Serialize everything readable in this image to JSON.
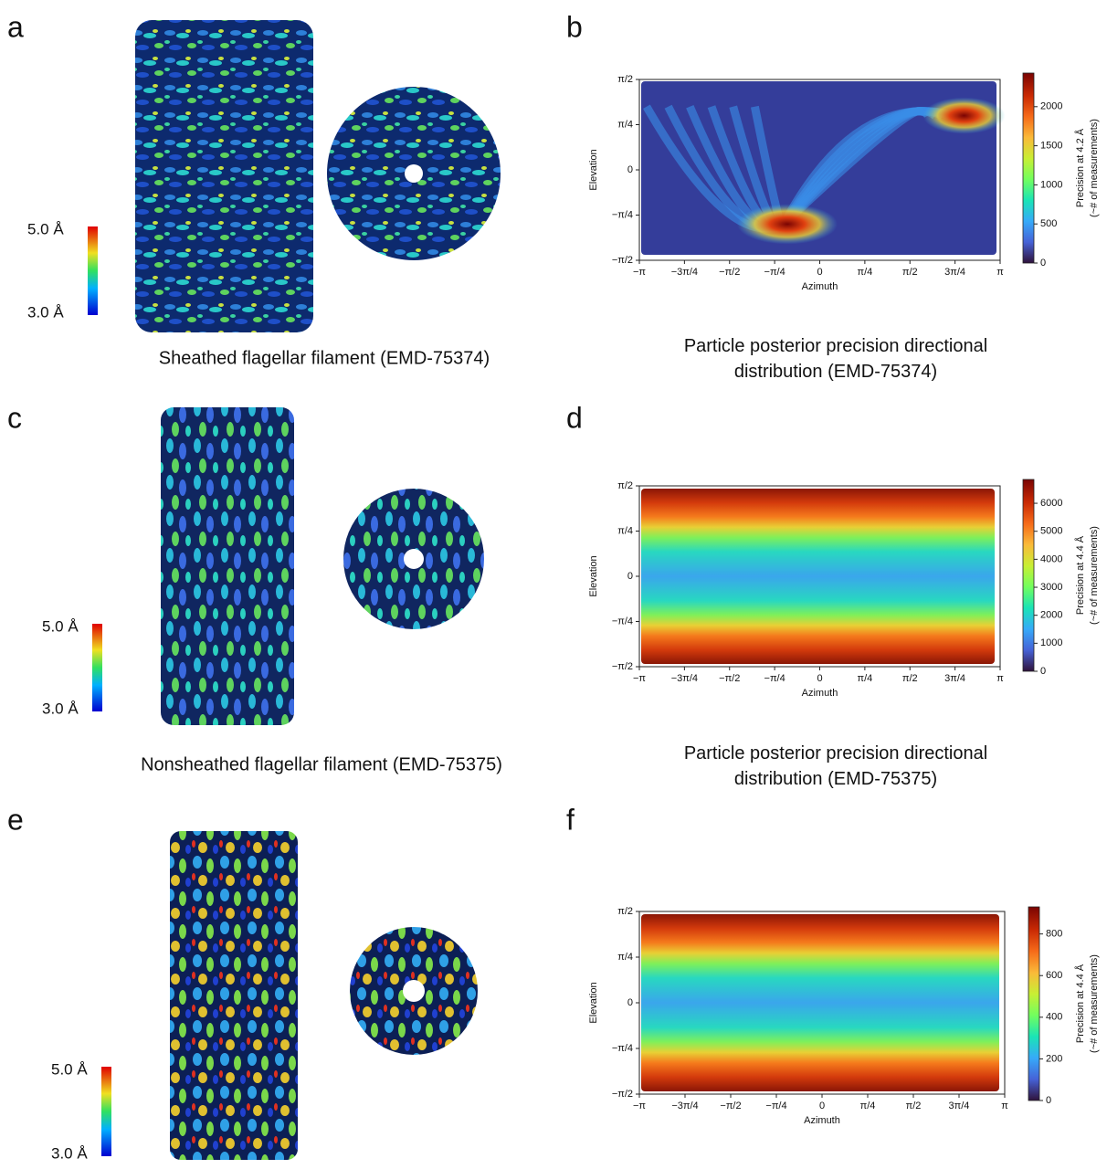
{
  "panels": [
    {
      "letter": "a",
      "caption": "Sheathed flagellar filament (EMD-75374)",
      "scale_max": "5.0 Å",
      "scale_min": "3.0 Å"
    },
    {
      "letter": "b",
      "caption": "Particle posterior precision directional distribution (EMD-75374)",
      "xlabel": "Azimuth",
      "ylabel": "Elevation",
      "cbar_label": [
        "Precision at 4.2 Å",
        "(~# of measurements)"
      ],
      "xlim": [
        -3.14159,
        3.14159
      ],
      "ylim": [
        -1.5708,
        1.5708
      ],
      "xticks": [
        {
          "value": -3.14159,
          "label": "−π"
        },
        {
          "value": -2.35619,
          "label": "−3π/4"
        },
        {
          "value": -1.5708,
          "label": "−π/2"
        },
        {
          "value": -0.7854,
          "label": "−π/4"
        },
        0,
        {
          "value": 0.7854,
          "label": "π/4"
        },
        {
          "value": 1.5708,
          "label": "π/2"
        },
        {
          "value": 2.35619,
          "label": "3π/4"
        },
        {
          "value": 3.14159,
          "label": "π"
        }
      ],
      "yticks": [
        {
          "value": -1.5708,
          "label": "−π/2"
        },
        {
          "value": -0.7854,
          "label": "−π/4"
        },
        0,
        {
          "value": 0.7854,
          "label": "π/4"
        },
        {
          "value": 1.5708,
          "label": "π/2"
        }
      ],
      "cbar_lim": [
        0,
        2430
      ],
      "cbar_ticks": [
        0,
        500,
        1000,
        1500,
        2000
      ]
    },
    {
      "letter": "c",
      "caption": "Nonsheathed flagellar filament (EMD-75375)",
      "scale_max": "5.0 Å",
      "scale_min": "3.0 Å"
    },
    {
      "letter": "d",
      "caption": "Particle posterior precision directional distribution (EMD-75375)",
      "xlabel": "Azimuth",
      "ylabel": "Elevation",
      "cbar_label": [
        "Precision at 4.4 Å",
        "(~# of measurements)"
      ],
      "xlim": [
        -3.14159,
        3.14159
      ],
      "ylim": [
        -1.5708,
        1.5708
      ],
      "xticks": [
        {
          "value": -3.14159,
          "label": "−π"
        },
        {
          "value": -2.35619,
          "label": "−3π/4"
        },
        {
          "value": -1.5708,
          "label": "−π/2"
        },
        {
          "value": -0.7854,
          "label": "−π/4"
        },
        0,
        {
          "value": 0.7854,
          "label": "π/4"
        },
        {
          "value": 1.5708,
          "label": "π/2"
        },
        {
          "value": 2.35619,
          "label": "3π/4"
        },
        {
          "value": 3.14159,
          "label": "π"
        }
      ],
      "yticks": [
        {
          "value": -1.5708,
          "label": "−π/2"
        },
        {
          "value": -0.7854,
          "label": "−π/4"
        },
        0,
        {
          "value": 0.7854,
          "label": "π/4"
        },
        {
          "value": 1.5708,
          "label": "π/2"
        }
      ],
      "cbar_lim": [
        0,
        6850
      ],
      "cbar_ticks": [
        0,
        1000,
        2000,
        3000,
        4000,
        5000,
        6000
      ]
    },
    {
      "letter": "e",
      "scale_max": "5.0 Å",
      "scale_min": "3.0 Å"
    },
    {
      "letter": "f",
      "xlabel": "Azimuth",
      "ylabel": "Elevation",
      "cbar_label": [
        "Precision at 4.4 Å",
        "(~# of measurements)"
      ],
      "xlim": [
        -3.14159,
        3.14159
      ],
      "ylim": [
        -1.5708,
        1.5708
      ],
      "xticks": [
        {
          "value": -3.14159,
          "label": "−π"
        },
        {
          "value": -2.35619,
          "label": "−3π/4"
        },
        {
          "value": -1.5708,
          "label": "−π/2"
        },
        {
          "value": -0.7854,
          "label": "−π/4"
        },
        0,
        {
          "value": 0.7854,
          "label": "π/4"
        },
        {
          "value": 1.5708,
          "label": "π/2"
        },
        {
          "value": 2.35619,
          "label": "3π/4"
        },
        {
          "value": 3.14159,
          "label": "π"
        }
      ],
      "yticks": [
        {
          "value": -1.5708,
          "label": "−π/2"
        },
        {
          "value": -0.7854,
          "label": "−π/4"
        },
        0,
        {
          "value": 0.7854,
          "label": "π/4"
        },
        {
          "value": 1.5708,
          "label": "π/2"
        }
      ],
      "cbar_lim": [
        0,
        930
      ],
      "cbar_ticks": [
        0,
        200,
        400,
        600,
        800
      ]
    }
  ]
}
